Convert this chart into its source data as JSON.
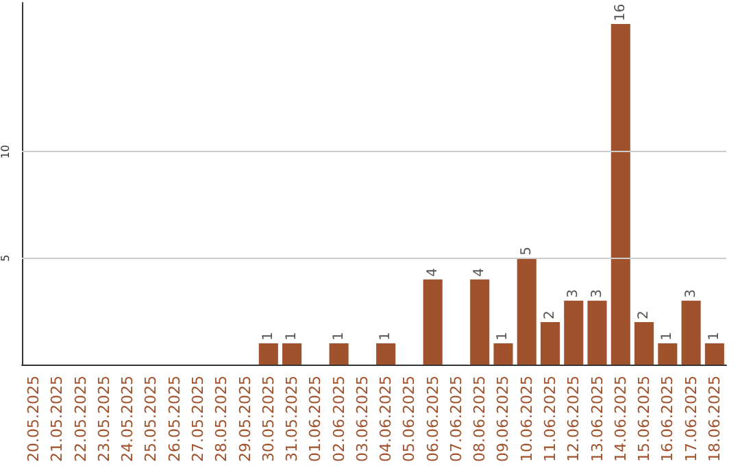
{
  "chart_data": {
    "type": "bar",
    "categories": [
      "20.05.2025",
      "21.05.2025",
      "22.05.2025",
      "23.05.2025",
      "24.05.2025",
      "25.05.2025",
      "26.05.2025",
      "27.05.2025",
      "28.05.2025",
      "29.05.2025",
      "30.05.2025",
      "31.05.2025",
      "01.06.2025",
      "02.06.2025",
      "03.06.2025",
      "04.06.2025",
      "05.06.2025",
      "06.06.2025",
      "07.06.2025",
      "08.06.2025",
      "09.06.2025",
      "10.06.2025",
      "11.06.2025",
      "12.06.2025",
      "13.06.2025",
      "14.06.2025",
      "15.06.2025",
      "16.06.2025",
      "17.06.2025",
      "18.06.2025"
    ],
    "values": [
      0,
      0,
      0,
      0,
      0,
      0,
      0,
      0,
      0,
      0,
      1,
      1,
      0,
      1,
      0,
      1,
      0,
      4,
      0,
      4,
      1,
      5,
      2,
      3,
      3,
      16,
      2,
      1,
      3,
      1
    ],
    "value_labels": [
      null,
      null,
      null,
      null,
      null,
      null,
      null,
      null,
      null,
      null,
      "1",
      "1",
      null,
      "1",
      null,
      "1",
      null,
      "4",
      null,
      "4",
      "1",
      "5",
      "2",
      "3",
      "3",
      "16",
      "2",
      "1",
      "3",
      "1"
    ],
    "color": "#a0522d",
    "ylim": [
      0,
      17
    ],
    "yticks": [
      5,
      10
    ],
    "grid": "y"
  }
}
